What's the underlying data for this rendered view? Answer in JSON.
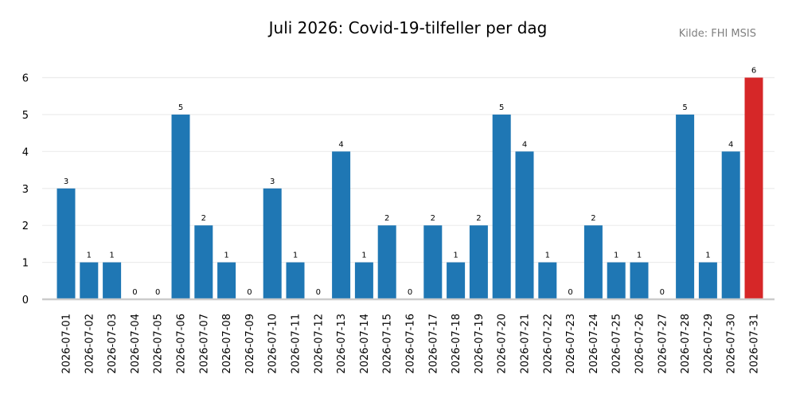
{
  "title": "Juli 2026: Covid-19-tilfeller per dag",
  "source": "Kilde: FHI MSIS",
  "colors": {
    "bar": "#1f77b4",
    "highlight": "#d62728",
    "grid": "#ebebeb",
    "axis": "#cccccc",
    "text": "#000000",
    "source_text": "#808080"
  },
  "chart_data": {
    "type": "bar",
    "title": "Juli 2026: Covid-19-tilfeller per dag",
    "xlabel": "",
    "ylabel": "",
    "ylim": [
      0,
      6
    ],
    "yticks": [
      0,
      1,
      2,
      3,
      4,
      5,
      6
    ],
    "grid": "horizontal",
    "highlight_category": "2026-07-31",
    "categories": [
      "2026-07-01",
      "2026-07-02",
      "2026-07-03",
      "2026-07-04",
      "2026-07-05",
      "2026-07-06",
      "2026-07-07",
      "2026-07-08",
      "2026-07-09",
      "2026-07-10",
      "2026-07-11",
      "2026-07-12",
      "2026-07-13",
      "2026-07-14",
      "2026-07-15",
      "2026-07-16",
      "2026-07-17",
      "2026-07-18",
      "2026-07-19",
      "2026-07-20",
      "2026-07-21",
      "2026-07-22",
      "2026-07-23",
      "2026-07-24",
      "2026-07-25",
      "2026-07-26",
      "2026-07-27",
      "2026-07-28",
      "2026-07-29",
      "2026-07-30",
      "2026-07-31"
    ],
    "values": [
      3,
      1,
      1,
      0,
      0,
      5,
      2,
      1,
      0,
      3,
      1,
      0,
      4,
      1,
      2,
      0,
      2,
      1,
      2,
      5,
      4,
      1,
      0,
      2,
      1,
      1,
      0,
      5,
      1,
      4,
      6
    ]
  }
}
